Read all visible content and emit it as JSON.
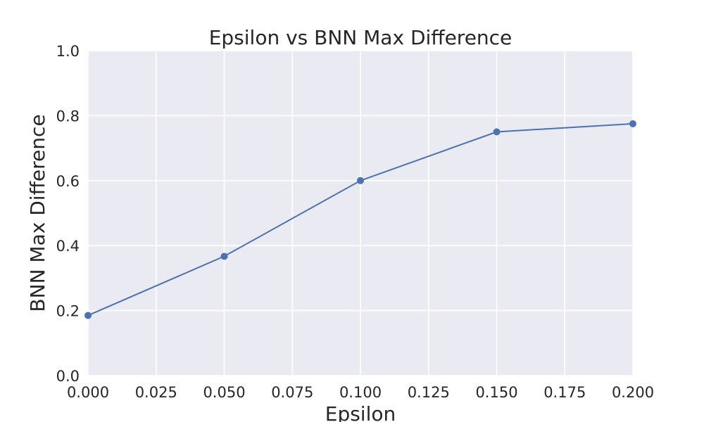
{
  "chart_data": {
    "type": "line",
    "title": "Epsilon vs BNN Max Difference",
    "xlabel": "Epsilon",
    "ylabel": "BNN Max Difference",
    "xlim": [
      0.0,
      0.2
    ],
    "ylim": [
      0.0,
      1.0
    ],
    "xticks": [
      "0.000",
      "0.025",
      "0.050",
      "0.075",
      "0.100",
      "0.125",
      "0.150",
      "0.175",
      "0.200"
    ],
    "yticks": [
      "0.0",
      "0.2",
      "0.4",
      "0.6",
      "0.8",
      "1.0"
    ],
    "grid": true,
    "series": [
      {
        "x": [
          0.0,
          0.05,
          0.1,
          0.15,
          0.2
        ],
        "y": [
          0.185,
          0.367,
          0.6,
          0.75,
          0.775
        ],
        "color": "#4c72b0"
      }
    ]
  }
}
